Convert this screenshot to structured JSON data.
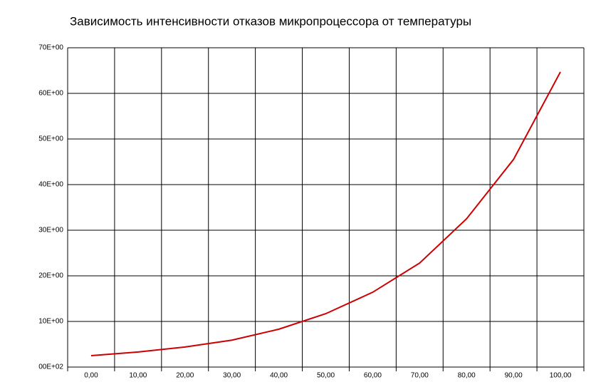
{
  "chart_data": {
    "type": "line",
    "title": "Зависимость интенсивности отказов микропроцессора  от температуры",
    "categories": [
      "0,00",
      "10,00",
      "20,00",
      "30,00",
      "40,00",
      "50,00",
      "60,00",
      "70,00",
      "80,00",
      "90,00",
      "100,00"
    ],
    "series": [
      {
        "color": "#cc0000",
        "values": [
          2.5,
          3.3,
          4.4,
          5.9,
          8.3,
          11.7,
          16.4,
          22.8,
          32.5,
          45.5,
          64.7
        ]
      }
    ],
    "ylim": [
      0,
      70
    ],
    "yticks": [
      {
        "value": 0,
        "label": "00E+02"
      },
      {
        "value": 10,
        "label": "10E+00"
      },
      {
        "value": 20,
        "label": "20E+00"
      },
      {
        "value": 30,
        "label": "30E+00"
      },
      {
        "value": 40,
        "label": "40E+00"
      },
      {
        "value": 50,
        "label": "50E+00"
      },
      {
        "value": 60,
        "label": "60E+00"
      },
      {
        "value": 70,
        "label": "70E+00"
      }
    ],
    "grid": true
  }
}
